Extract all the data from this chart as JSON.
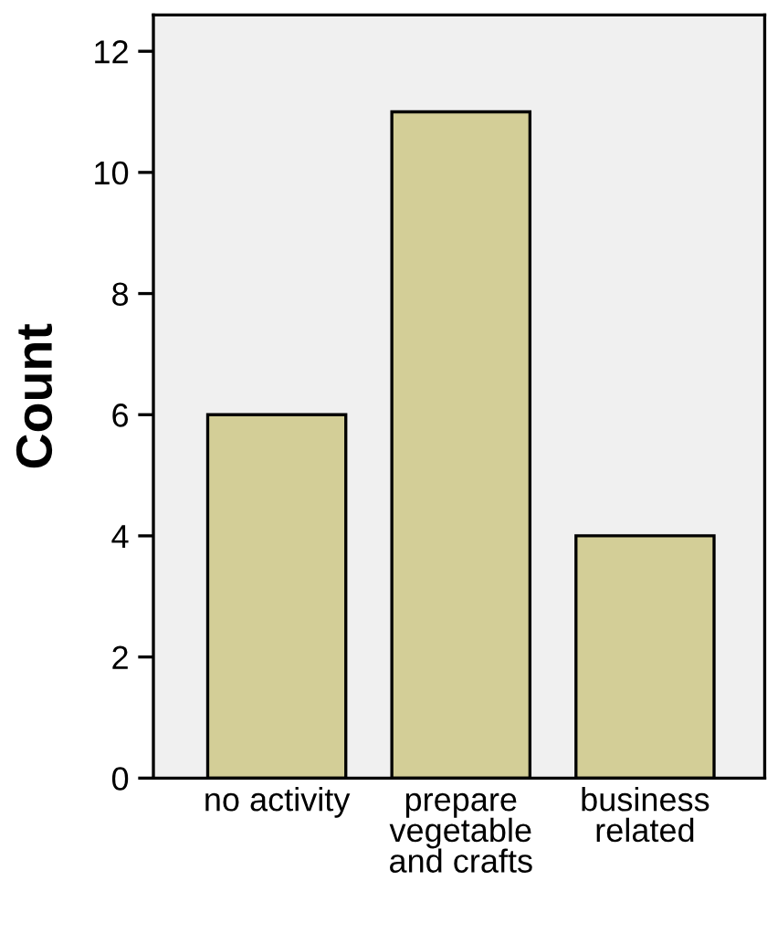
{
  "chart_data": {
    "type": "bar",
    "ylabel": "Count",
    "categories": [
      "no activity",
      "prepare\nvegetable\nand crafts",
      "business\nrelated"
    ],
    "values": [
      6,
      11,
      4
    ],
    "color": "#d3ce97",
    "ylim": [
      0,
      12.6
    ],
    "yticks": [
      0,
      2,
      4,
      6,
      8,
      10,
      12
    ],
    "grid": false
  }
}
